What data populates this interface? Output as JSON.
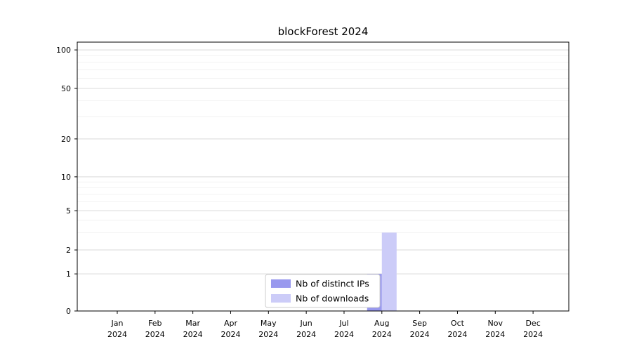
{
  "chart_data": {
    "type": "bar",
    "title": "blockForest 2024",
    "categories": [
      "Jan",
      "Feb",
      "Mar",
      "Apr",
      "May",
      "Jun",
      "Jul",
      "Aug",
      "Sep",
      "Oct",
      "Nov",
      "Dec"
    ],
    "category_year": "2024",
    "series": [
      {
        "name": "Nb of distinct IPs",
        "color": "#9999ee",
        "values": [
          0,
          0,
          0,
          0,
          0,
          0,
          0,
          1,
          0,
          0,
          0,
          0
        ]
      },
      {
        "name": "Nb of downloads",
        "color": "#ccccf8",
        "values": [
          0,
          0,
          0,
          0,
          0,
          0,
          0,
          3,
          0,
          0,
          0,
          0
        ]
      }
    ],
    "yticks": [
      0,
      1,
      2,
      5,
      10,
      20,
      50,
      100
    ],
    "minor_yticks": [
      3,
      4,
      6,
      7,
      8,
      9,
      30,
      40,
      60,
      70,
      80,
      90
    ],
    "ylabel": "",
    "xlabel": "",
    "yscale": "log-like (0,1,2,5,10,20,50,100)",
    "ylim": [
      0,
      110
    ],
    "grid": "horizontal",
    "legend_position": "inside-bottom-center",
    "colors": {
      "major_grid": "#d9d9d9",
      "minor_grid": "#f2f2f2",
      "axis": "#000000"
    }
  }
}
